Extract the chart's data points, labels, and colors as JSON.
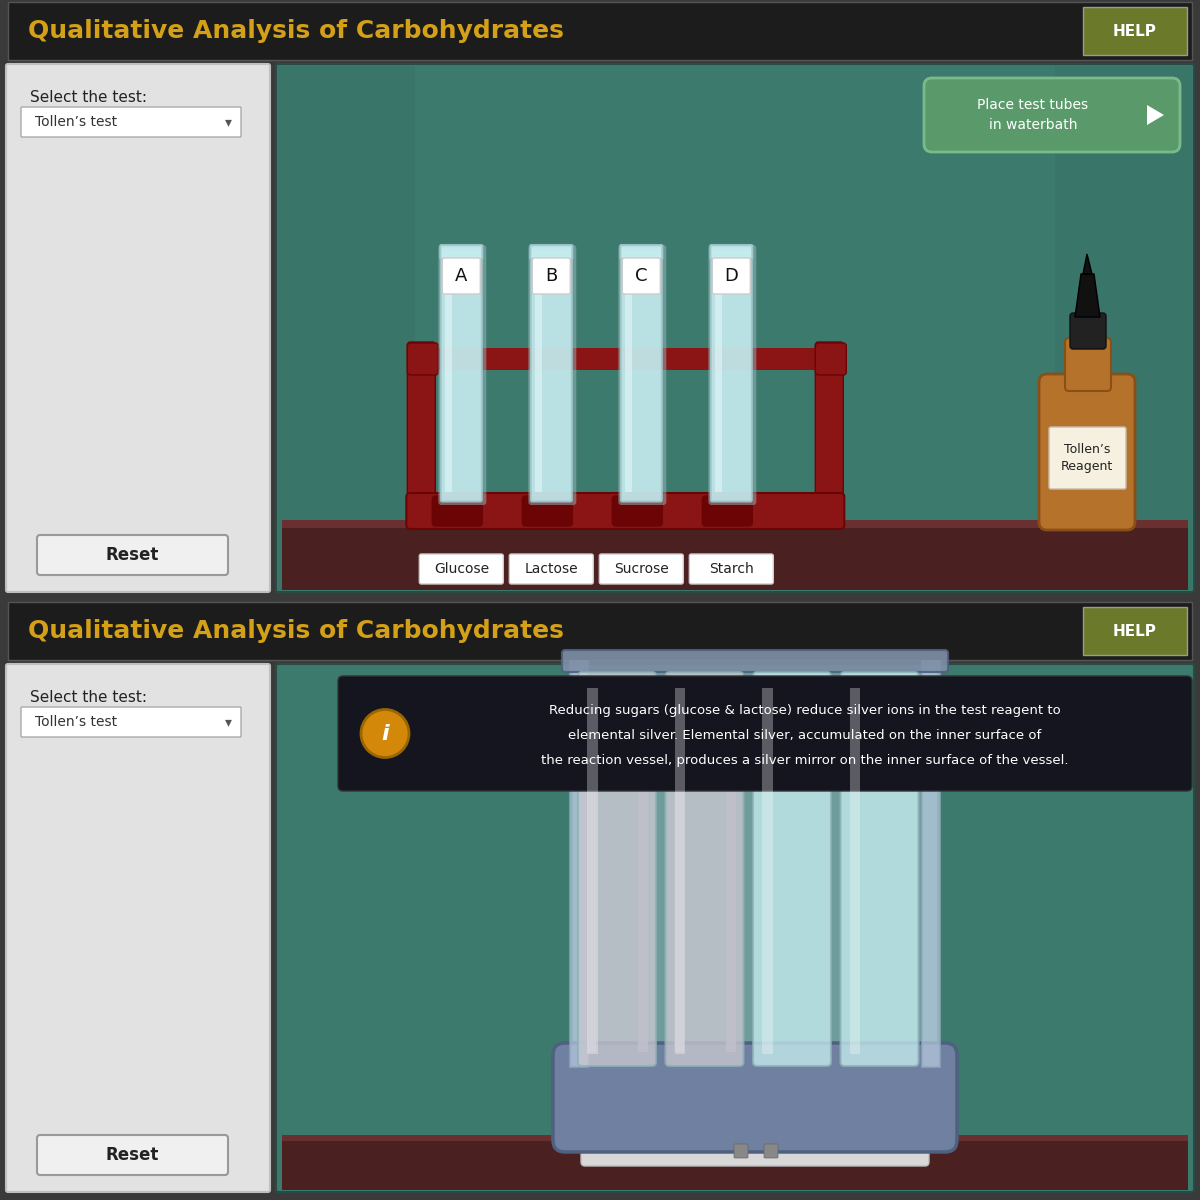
{
  "title": "Qualitative Analysis of Carbohydrates",
  "title_color": "#D4A017",
  "title_bg": "#1c1c1c",
  "help_label": "HELP",
  "help_bg": "#6b7a2a",
  "select_label": "Select the test:",
  "dropdown_text": "Tollen’s test",
  "reset_label": "Reset",
  "panel_teal": "#3d7a6e",
  "panel_teal_dark": "#2a5e54",
  "left_panel_bg": "#e2e2e2",
  "outer_bg": "#3a3a3a",
  "waterbath_btn_text": "Place test tubes\nin waterbath",
  "waterbath_btn_bg": "#5a9a6a",
  "waterbath_btn_border": "#7abb8a",
  "tube_labels": [
    "A",
    "B",
    "C",
    "D"
  ],
  "substance_labels": [
    "Glucose",
    "Lactose",
    "Sucrose",
    "Starch"
  ],
  "rack_color": "#8B1515",
  "rack_dark": "#6B0505",
  "tube_glass": "#c5ecef",
  "tube_glass_highlight": "#e8f8fa",
  "tube_glass_dark": "#9ab8bc",
  "tube_rim_color": "#a0c8cc",
  "bottle_brown": "#b5722a",
  "bottle_brown_dark": "#8a4e18",
  "bottle_cap_color": "#1a1a1a",
  "bottle_label_bg": "#f5f0e0",
  "reagent_label": "Tollen’s\nReagent",
  "help_text_line1": "Reducing sugars (glucose & lactose) reduce silver ions in the test reagent to",
  "help_text_line2": "elemental silver. Elemental silver, accumulated on the inner surface of",
  "help_text_line3": "the reaction vessel, produces a silver mirror on the inner surface of the vessel.",
  "tooltip_bg": "#151520",
  "info_icon_bg": "#D4880A",
  "waterbath_rim_color": "#8090a8",
  "waterbath_base_color": "#7080a0",
  "waterbath_base_dark": "#506080",
  "waterbath_water": "#b8d0e0",
  "silver_color": "#c0c0cc",
  "table_color": "#4a2020",
  "table_top_color": "#6a3030",
  "border_gray": "#888888",
  "white_panel_border": "#c0c0c0"
}
